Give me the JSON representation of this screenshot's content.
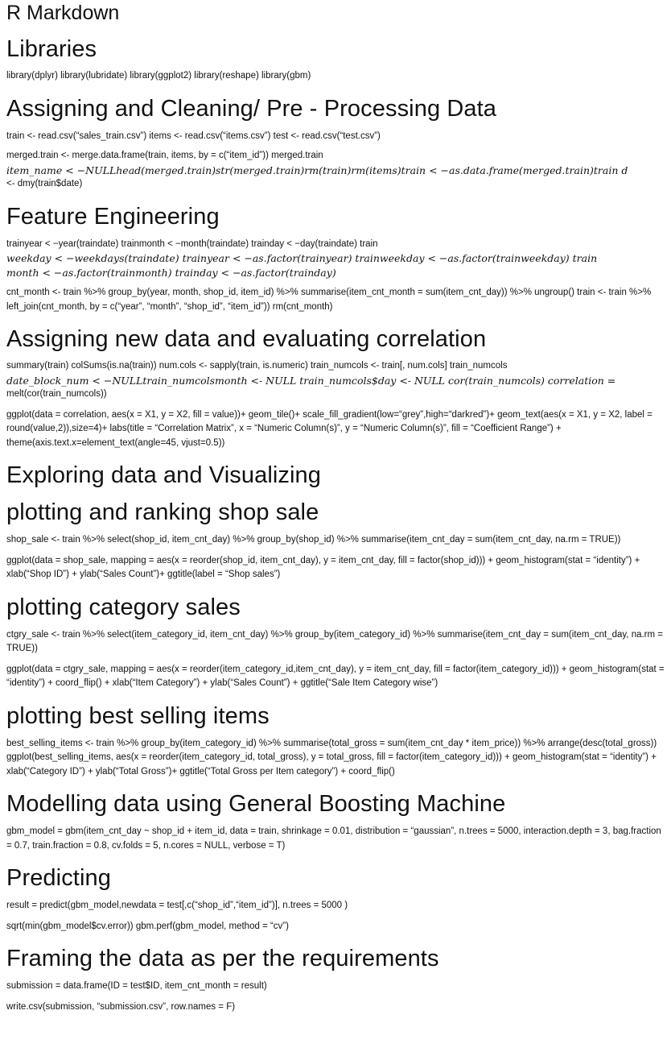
{
  "doc_title": "R Markdown",
  "sections": [
    {
      "heading": "Libraries",
      "p1": "library(dplyr) library(lubridate) library(ggplot2) library(reshape) library(gbm)"
    },
    {
      "heading": "Assigning and Cleaning/ Pre - Processing Data",
      "p1": "train <- read.csv(“sales_train.csv”) items <- read.csv(“items.csv”) test <- read.csv(“test.csv”)",
      "p2_l1": "merged.train <- merge.data.frame(train, items, by = c(“item_id”)) merged.train",
      "p2_l2": "item_name < −NULLhead(merged.train)str(merged.train)rm(train)rm(items)train < −as.data.frame(merged.train)train d",
      "p2_l3": "<- dmy(train$date)"
    },
    {
      "heading": "Feature Engineering",
      "p1_l1": "trainyear < −year(traindate) trainmonth < −month(traindate) trainday < −day(traindate) train",
      "p1_l2": "weekday < −weekdays(traindate) trainyear < −as.factor(trainyear) trainweekday < −as.factor(trainweekday) train",
      "p1_l3": "month < −as.factor(trainmonth) trainday < −as.factor(trainday)",
      "p2": "cnt_month <- train %>% group_by(year, month, shop_id, item_id) %>% summarise(item_cnt_month = sum(item_cnt_day)) %>% ungroup() train <- train %>% left_join(cnt_month, by = c(“year”, “month”, “shop_id”, “item_id”)) rm(cnt_month)"
    },
    {
      "heading": "Assigning new data and evaluating correlation",
      "p1_l1": "summary(train) colSums(is.na(train)) num.cols <- sapply(train, is.numeric) train_numcols <- train[, num.cols] train_numcols",
      "p1_l2": "date_block_num < −NULLtrain_numcolsmonth <- NULL train_numcols$day <- NULL cor(train_numcols) correlation =",
      "p1_l3": "melt(cor(train_numcols))",
      "p2": "ggplot(data = correlation, aes(x = X1, y = X2, fill = value))+ geom_tile()+ scale_fill_gradient(low=“grey”,high=“darkred”)+ geom_text(aes(x = X1, y = X2, label = round(value,2)),size=4)+ labs(title = “Correlation Matrix”, x = “Numeric Column(s)”, y = “Numeric Column(s)”, fill = “Coefficient Range”) + theme(axis.text.x=element_text(angle=45, vjust=0.5))"
    },
    {
      "heading": "Exploring data and Visualizing"
    },
    {
      "heading": "plotting and ranking shop sale",
      "p1": "shop_sale <- train %>% select(shop_id, item_cnt_day) %>% group_by(shop_id) %>% summarise(item_cnt_day = sum(item_cnt_day, na.rm = TRUE))",
      "p2": "ggplot(data = shop_sale, mapping = aes(x = reorder(shop_id, item_cnt_day), y = item_cnt_day, fill = factor(shop_id))) + geom_histogram(stat = “identity”) + xlab(“Shop ID”) + ylab(“Sales Count”)+ ggtitle(label = “Shop sales”)"
    },
    {
      "heading": "plotting category sales",
      "p1": "ctgry_sale <- train %>% select(item_category_id, item_cnt_day) %>% group_by(item_category_id) %>% summarise(item_cnt_day = sum(item_cnt_day, na.rm = TRUE))",
      "p2": "ggplot(data = ctgry_sale, mapping = aes(x = reorder(item_category_id,item_cnt_day), y = item_cnt_day, fill = factor(item_category_id))) + geom_histogram(stat = “identity”) + coord_flip() + xlab(“Item Category”) + ylab(“Sales Count”) + ggtitle(“Sale Item Category wise”)"
    },
    {
      "heading": "plotting best selling items",
      "p1": "best_selling_items <- train %>% group_by(item_category_id) %>% summarise(total_gross = sum(item_cnt_day * item_price)) %>% arrange(desc(total_gross)) ggplot(best_selling_items, aes(x = reorder(item_category_id, total_gross), y = total_gross, fill = factor(item_category_id))) + geom_histogram(stat = “identity”) + xlab(“Category ID”) + ylab(“Total Gross”)+ ggtitle(“Total Gross per Item category”) + coord_flip()"
    },
    {
      "heading": "Modelling data using General Boosting Machine",
      "p1": "gbm_model = gbm(item_cnt_day ~ shop_id + item_id, data = train, shrinkage = 0.01, distribution = “gaussian”, n.trees = 5000, interaction.depth = 3, bag.fraction = 0.7, train.fraction = 0.8, cv.folds = 5, n.cores = NULL, verbose = T)"
    },
    {
      "heading": "Predicting",
      "p1": "result = predict(gbm_model,newdata = test[,c(“shop_id”,“item_id”)], n.trees = 5000 )",
      "p2": "sqrt(min(gbm_model$cv.error)) gbm.perf(gbm_model, method = “cv”)"
    },
    {
      "heading": "Framing the data as per the requirements",
      "p1": "submission = data.frame(ID = test$ID, item_cnt_month = result)",
      "p2": "write.csv(submission, “submission.csv”, row.names = F)"
    }
  ]
}
